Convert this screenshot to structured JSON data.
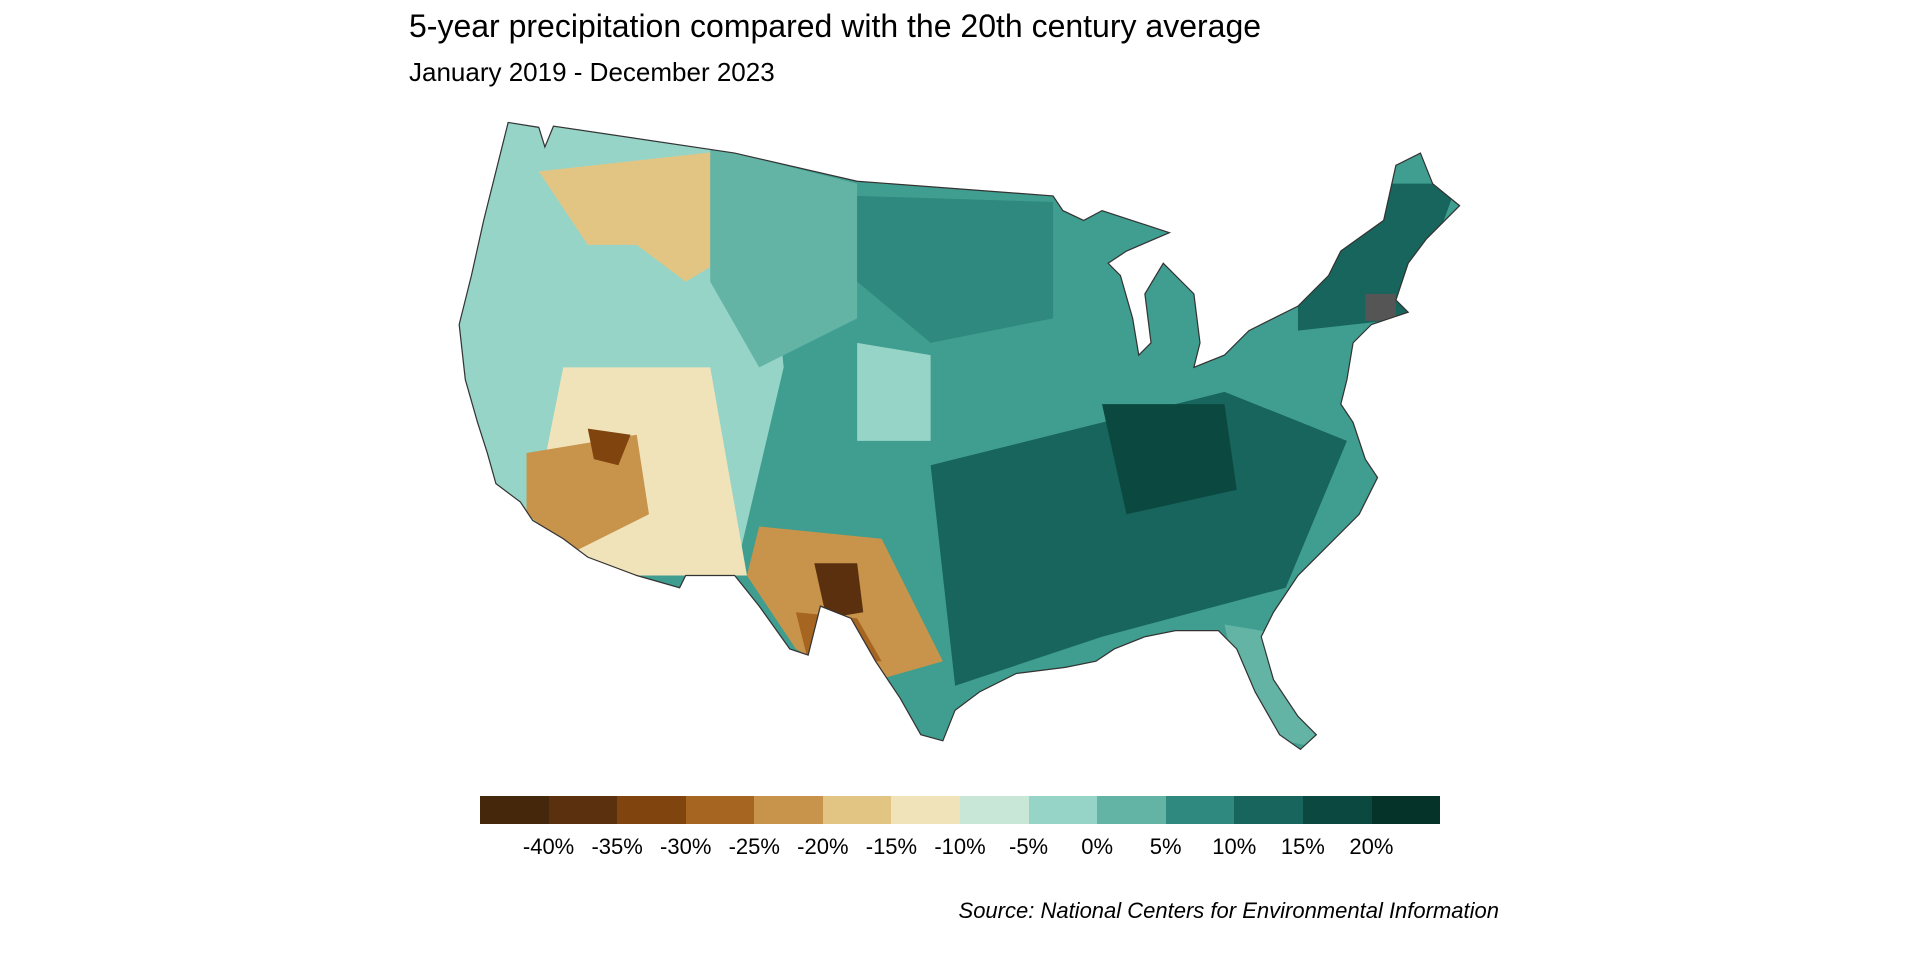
{
  "title": "5-year precipitation compared with the 20th century average",
  "subtitle": "January 2019 - December 2023",
  "source": "Source: National Centers for Environmental Information",
  "chart_data": {
    "type": "heatmap",
    "subtype": "choropleth map of US counties",
    "title": "5-year precipitation compared with the 20th century average",
    "subtitle": "January 2019 - December 2023",
    "legend": {
      "placement": "bottom",
      "tick_labels": [
        "-40%",
        "-35%",
        "-30%",
        "-25%",
        "-20%",
        "-15%",
        "-10%",
        "-5%",
        "0%",
        "5%",
        "10%",
        "15%",
        "20%"
      ],
      "colors": [
        "#45280c",
        "#5a300e",
        "#80450f",
        "#a66520",
        "#c8934a",
        "#e3c583",
        "#f1e3b9",
        "#c9e7d6",
        "#96d4c7",
        "#63b4a5",
        "#2f897e",
        "#17655c",
        "#0b4840",
        "#063329"
      ]
    }
  }
}
